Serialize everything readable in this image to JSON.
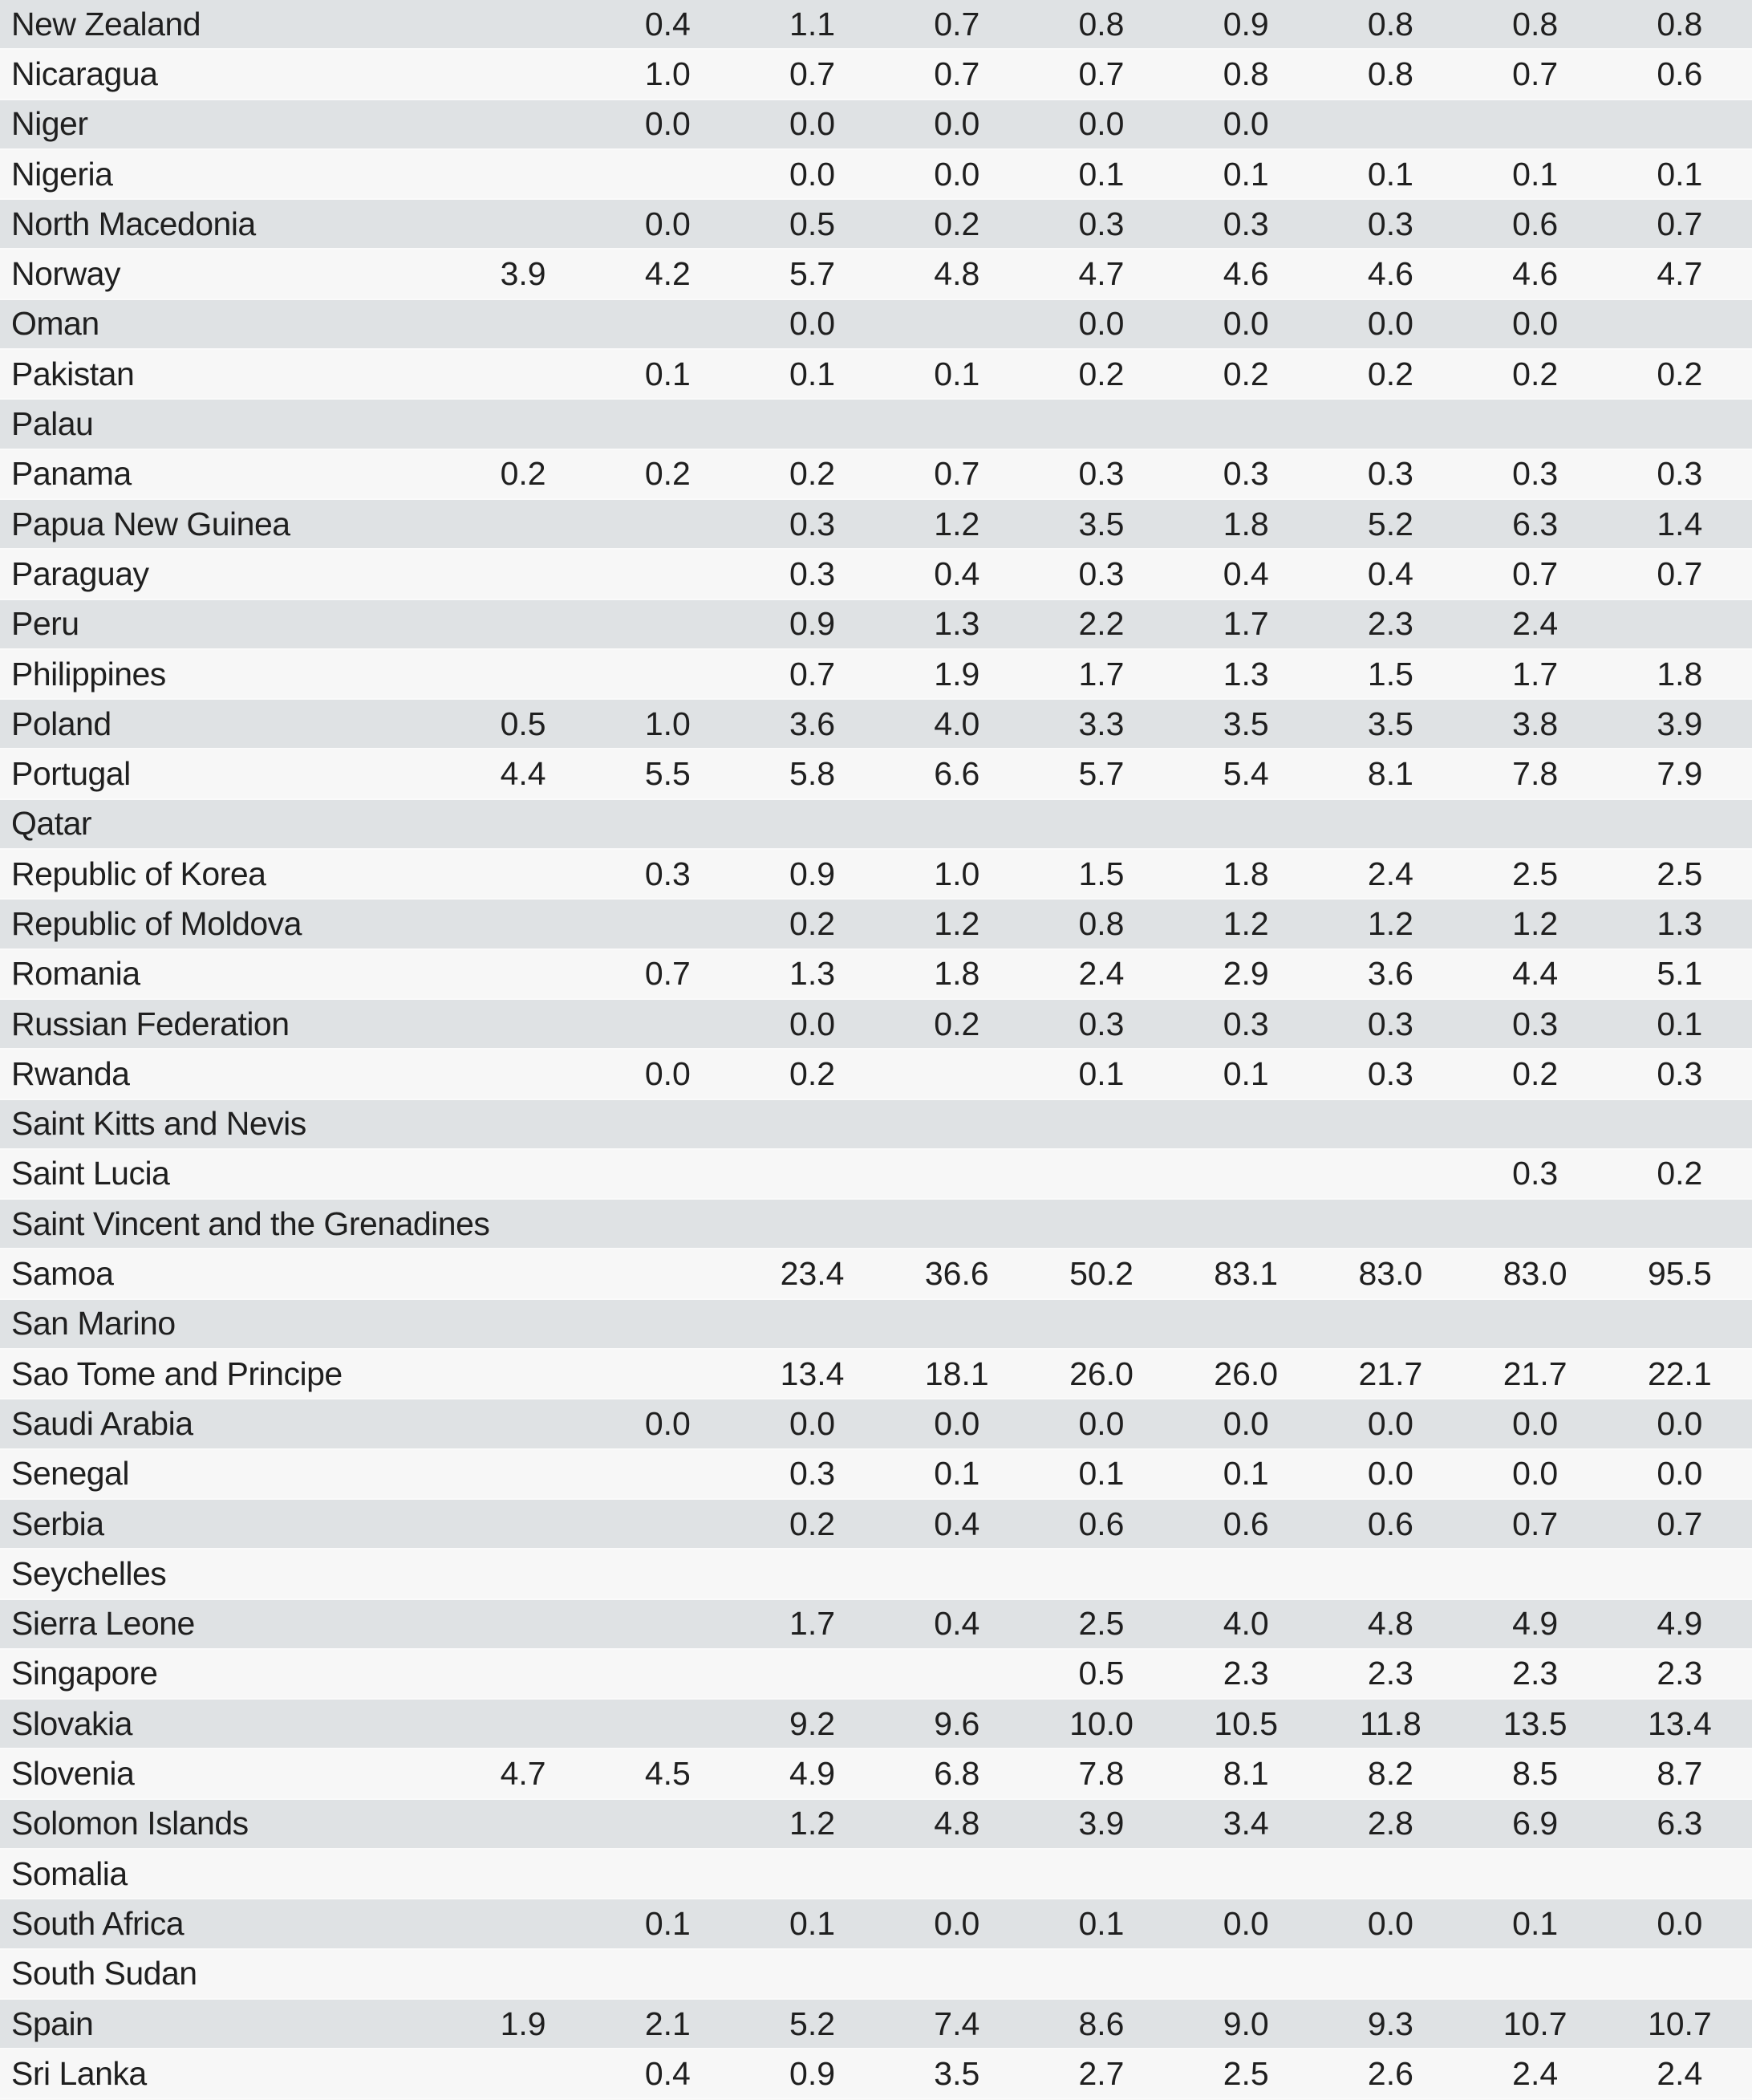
{
  "colors": {
    "row_stripe_dark": "#dfe2e4",
    "row_stripe_light": "#f7f7f7",
    "row_separator": "#fafafa",
    "text": "#1f1f1f"
  },
  "table": {
    "columns_count": 9,
    "rows": [
      {
        "country": "New Zealand",
        "values": [
          "",
          "0.4",
          "1.1",
          "0.7",
          "0.8",
          "0.9",
          "0.8",
          "0.8",
          "0.8"
        ]
      },
      {
        "country": "Nicaragua",
        "values": [
          "",
          "1.0",
          "0.7",
          "0.7",
          "0.7",
          "0.8",
          "0.8",
          "0.7",
          "0.6"
        ]
      },
      {
        "country": "Niger",
        "values": [
          "",
          "0.0",
          "0.0",
          "0.0",
          "0.0",
          "0.0",
          "",
          "",
          ""
        ]
      },
      {
        "country": "Nigeria",
        "values": [
          "",
          "",
          "0.0",
          "0.0",
          "0.1",
          "0.1",
          "0.1",
          "0.1",
          "0.1"
        ]
      },
      {
        "country": "North Macedonia",
        "values": [
          "",
          "0.0",
          "0.5",
          "0.2",
          "0.3",
          "0.3",
          "0.3",
          "0.6",
          "0.7"
        ]
      },
      {
        "country": "Norway",
        "values": [
          "3.9",
          "4.2",
          "5.7",
          "4.8",
          "4.7",
          "4.6",
          "4.6",
          "4.6",
          "4.7"
        ]
      },
      {
        "country": "Oman",
        "values": [
          "",
          "",
          "0.0",
          "",
          "0.0",
          "0.0",
          "0.0",
          "0.0",
          ""
        ]
      },
      {
        "country": "Pakistan",
        "values": [
          "",
          "0.1",
          "0.1",
          "0.1",
          "0.2",
          "0.2",
          "0.2",
          "0.2",
          "0.2"
        ]
      },
      {
        "country": "Palau",
        "values": [
          "",
          "",
          "",
          "",
          "",
          "",
          "",
          "",
          ""
        ]
      },
      {
        "country": "Panama",
        "values": [
          "0.2",
          "0.2",
          "0.2",
          "0.7",
          "0.3",
          "0.3",
          "0.3",
          "0.3",
          "0.3"
        ]
      },
      {
        "country": "Papua New Guinea",
        "values": [
          "",
          "",
          "0.3",
          "1.2",
          "3.5",
          "1.8",
          "5.2",
          "6.3",
          "1.4"
        ]
      },
      {
        "country": "Paraguay",
        "values": [
          "",
          "",
          "0.3",
          "0.4",
          "0.3",
          "0.4",
          "0.4",
          "0.7",
          "0.7"
        ]
      },
      {
        "country": "Peru",
        "values": [
          "",
          "",
          "0.9",
          "1.3",
          "2.2",
          "1.7",
          "2.3",
          "2.4",
          ""
        ]
      },
      {
        "country": "Philippines",
        "values": [
          "",
          "",
          "0.7",
          "1.9",
          "1.7",
          "1.3",
          "1.5",
          "1.7",
          "1.8"
        ]
      },
      {
        "country": "Poland",
        "values": [
          "0.5",
          "1.0",
          "3.6",
          "4.0",
          "3.3",
          "3.5",
          "3.5",
          "3.8",
          "3.9"
        ]
      },
      {
        "country": "Portugal",
        "values": [
          "4.4",
          "5.5",
          "5.8",
          "6.6",
          "5.7",
          "5.4",
          "8.1",
          "7.8",
          "7.9"
        ]
      },
      {
        "country": "Qatar",
        "values": [
          "",
          "",
          "",
          "",
          "",
          "",
          "",
          "",
          ""
        ]
      },
      {
        "country": "Republic of Korea",
        "values": [
          "",
          "0.3",
          "0.9",
          "1.0",
          "1.5",
          "1.8",
          "2.4",
          "2.5",
          "2.5"
        ]
      },
      {
        "country": "Republic of Moldova",
        "values": [
          "",
          "",
          "0.2",
          "1.2",
          "0.8",
          "1.2",
          "1.2",
          "1.2",
          "1.3"
        ]
      },
      {
        "country": "Romania",
        "values": [
          "",
          "0.7",
          "1.3",
          "1.8",
          "2.4",
          "2.9",
          "3.6",
          "4.4",
          "5.1"
        ]
      },
      {
        "country": "Russian Federation",
        "values": [
          "",
          "",
          "0.0",
          "0.2",
          "0.3",
          "0.3",
          "0.3",
          "0.3",
          "0.1"
        ]
      },
      {
        "country": "Rwanda",
        "values": [
          "",
          "0.0",
          "0.2",
          "",
          "0.1",
          "0.1",
          "0.3",
          "0.2",
          "0.3"
        ]
      },
      {
        "country": "Saint Kitts and Nevis",
        "values": [
          "",
          "",
          "",
          "",
          "",
          "",
          "",
          "",
          ""
        ]
      },
      {
        "country": "Saint Lucia",
        "values": [
          "",
          "",
          "",
          "",
          "",
          "",
          "",
          "0.3",
          "0.2"
        ]
      },
      {
        "country": "Saint Vincent and the Grenadines",
        "values": [
          "",
          "",
          "",
          "",
          "",
          "",
          "",
          "",
          ""
        ]
      },
      {
        "country": "Samoa",
        "values": [
          "",
          "",
          "23.4",
          "36.6",
          "50.2",
          "83.1",
          "83.0",
          "83.0",
          "95.5"
        ]
      },
      {
        "country": "San Marino",
        "values": [
          "",
          "",
          "",
          "",
          "",
          "",
          "",
          "",
          ""
        ]
      },
      {
        "country": "Sao Tome and Principe",
        "values": [
          "",
          "",
          "13.4",
          "18.1",
          "26.0",
          "26.0",
          "21.7",
          "21.7",
          "22.1"
        ]
      },
      {
        "country": "Saudi Arabia",
        "values": [
          "",
          "0.0",
          "0.0",
          "0.0",
          "0.0",
          "0.0",
          "0.0",
          "0.0",
          "0.0"
        ]
      },
      {
        "country": "Senegal",
        "values": [
          "",
          "",
          "0.3",
          "0.1",
          "0.1",
          "0.1",
          "0.0",
          "0.0",
          "0.0"
        ]
      },
      {
        "country": "Serbia",
        "values": [
          "",
          "",
          "0.2",
          "0.4",
          "0.6",
          "0.6",
          "0.6",
          "0.7",
          "0.7"
        ]
      },
      {
        "country": "Seychelles",
        "values": [
          "",
          "",
          "",
          "",
          "",
          "",
          "",
          "",
          ""
        ]
      },
      {
        "country": "Sierra Leone",
        "values": [
          "",
          "",
          "1.7",
          "0.4",
          "2.5",
          "4.0",
          "4.8",
          "4.9",
          "4.9"
        ]
      },
      {
        "country": "Singapore",
        "values": [
          "",
          "",
          "",
          "",
          "0.5",
          "2.3",
          "2.3",
          "2.3",
          "2.3"
        ]
      },
      {
        "country": "Slovakia",
        "values": [
          "",
          "",
          "9.2",
          "9.6",
          "10.0",
          "10.5",
          "11.8",
          "13.5",
          "13.4"
        ]
      },
      {
        "country": "Slovenia",
        "values": [
          "4.7",
          "4.5",
          "4.9",
          "6.8",
          "7.8",
          "8.1",
          "8.2",
          "8.5",
          "8.7"
        ]
      },
      {
        "country": "Solomon Islands",
        "values": [
          "",
          "",
          "1.2",
          "4.8",
          "3.9",
          "3.4",
          "2.8",
          "6.9",
          "6.3"
        ]
      },
      {
        "country": "Somalia",
        "values": [
          "",
          "",
          "",
          "",
          "",
          "",
          "",
          "",
          ""
        ]
      },
      {
        "country": "South Africa",
        "values": [
          "",
          "0.1",
          "0.1",
          "0.0",
          "0.1",
          "0.0",
          "0.0",
          "0.1",
          "0.0"
        ]
      },
      {
        "country": "South Sudan",
        "values": [
          "",
          "",
          "",
          "",
          "",
          "",
          "",
          "",
          ""
        ]
      },
      {
        "country": "Spain",
        "values": [
          "1.9",
          "2.1",
          "5.2",
          "7.4",
          "8.6",
          "9.0",
          "9.3",
          "10.7",
          "10.7"
        ]
      },
      {
        "country": "Sri Lanka",
        "values": [
          "",
          "0.4",
          "0.9",
          "3.5",
          "2.7",
          "2.5",
          "2.6",
          "2.4",
          "2.4"
        ]
      }
    ]
  }
}
